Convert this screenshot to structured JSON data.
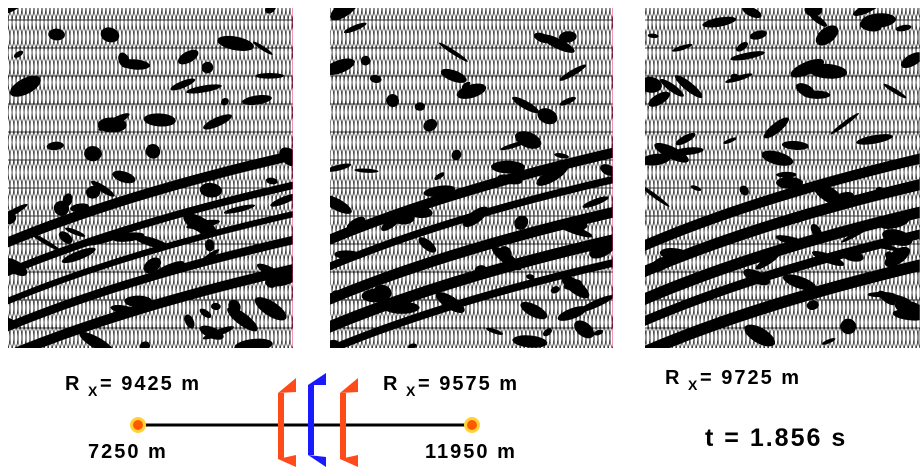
{
  "panels": [
    {
      "label": "R",
      "subscript": "X",
      "value": "= 9425 m"
    },
    {
      "label": "R",
      "subscript": "X",
      "value": "= 9575 m"
    },
    {
      "label": "R",
      "subscript": "X",
      "value": "= 9725 m"
    }
  ],
  "scale": {
    "start": "7250 m",
    "end": "11950 m"
  },
  "time": "t = 1.856 s"
}
